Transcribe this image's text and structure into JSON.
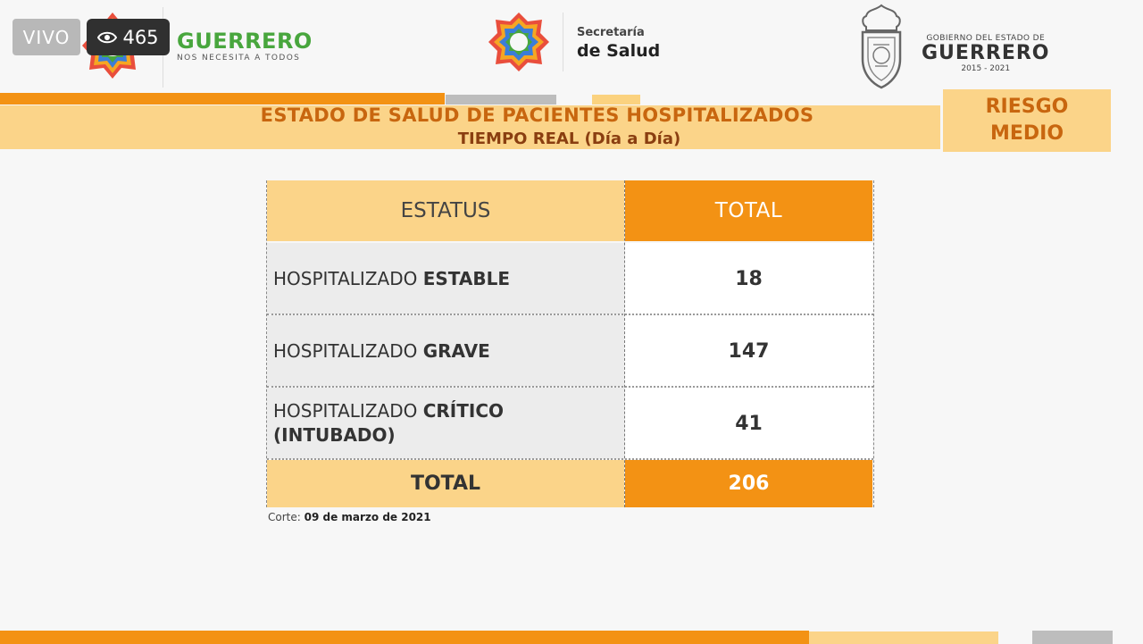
{
  "stream": {
    "live_label": "VIVO",
    "viewer_count": "465"
  },
  "header": {
    "left_brand": {
      "title": "GUERRERO",
      "subtitle": "NOS NECESITA A TODOS"
    },
    "center_brand": {
      "line1": "Secretaría",
      "line2": "de Salud"
    },
    "right_brand": {
      "top": "GOBIERNO DEL ESTADO DE",
      "main": "GUERRERO",
      "years": "2015 - 2021"
    }
  },
  "title": {
    "main": "ESTADO DE SALUD DE PACIENTES HOSPITALIZADOS",
    "sub": "TIEMPO REAL (Día a Día)"
  },
  "risk": {
    "line1": "RIESGO",
    "line2": "MEDIO"
  },
  "table": {
    "headers": {
      "status": "ESTATUS",
      "total": "TOTAL"
    },
    "rows": [
      {
        "prefix": "HOSPITALIZADO ",
        "status": "ESTABLE",
        "status_line2": "",
        "value": "18"
      },
      {
        "prefix": "HOSPITALIZADO ",
        "status": "GRAVE",
        "status_line2": "",
        "value": "147"
      },
      {
        "prefix": "HOSPITALIZADO ",
        "status": "CRÍTICO",
        "status_line2": "(INTUBADO)",
        "value": "41"
      }
    ],
    "total_label": "TOTAL",
    "total_value": "206"
  },
  "footnote": {
    "label": "Corte: ",
    "date": "09 de marzo de 2021"
  },
  "colors": {
    "orange": "#f39214",
    "light_orange": "#fbd489",
    "title_orange": "#c8660f",
    "guerrero_green": "#48a63d"
  },
  "icons": {
    "viewers": "eye-icon",
    "logos": [
      "guerrero-star-logo",
      "salud-star-logo",
      "state-coat-of-arms"
    ]
  }
}
